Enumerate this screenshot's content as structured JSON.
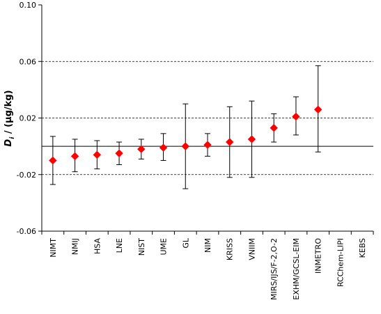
{
  "chart_data": {
    "type": "scatter",
    "ylabel_var": "D",
    "ylabel_sub": "i",
    "ylabel_unit": " / (µg/kg)",
    "ylim": [
      -0.06,
      0.1
    ],
    "yticks": [
      0.1,
      0.06,
      0.02,
      -0.02,
      -0.06
    ],
    "ytick_labels": [
      "0.10",
      "0.06",
      "0.02",
      "-0.02",
      "-0.06"
    ],
    "dashed_gridlines": [
      0.06,
      0.02,
      -0.02
    ],
    "zero_line": 0,
    "marker": "diamond",
    "marker_color": "#ff0000",
    "categories": [
      "NIMT",
      "NMIJ",
      "HSA",
      "LNE",
      "NIST",
      "UME",
      "GL",
      "NIM",
      "KRISS",
      "VNIIM",
      "MIRS/IJS/F-2,O-2",
      "EXHM/GCSL-EIM",
      "INMETRO",
      "RCChem-LIPI",
      "KEBS"
    ],
    "values": [
      -0.01,
      -0.007,
      -0.006,
      -0.005,
      -0.002,
      -0.001,
      0.0,
      0.001,
      0.003,
      0.005,
      0.013,
      0.021,
      0.026,
      null,
      null
    ],
    "error_low": [
      -0.027,
      -0.018,
      -0.016,
      -0.013,
      -0.009,
      -0.01,
      -0.03,
      -0.007,
      -0.022,
      -0.022,
      0.003,
      0.008,
      -0.004,
      null,
      null
    ],
    "error_high": [
      0.007,
      0.005,
      0.004,
      0.003,
      0.005,
      0.009,
      0.03,
      0.009,
      0.028,
      0.032,
      0.023,
      0.035,
      0.057,
      null,
      null
    ]
  }
}
